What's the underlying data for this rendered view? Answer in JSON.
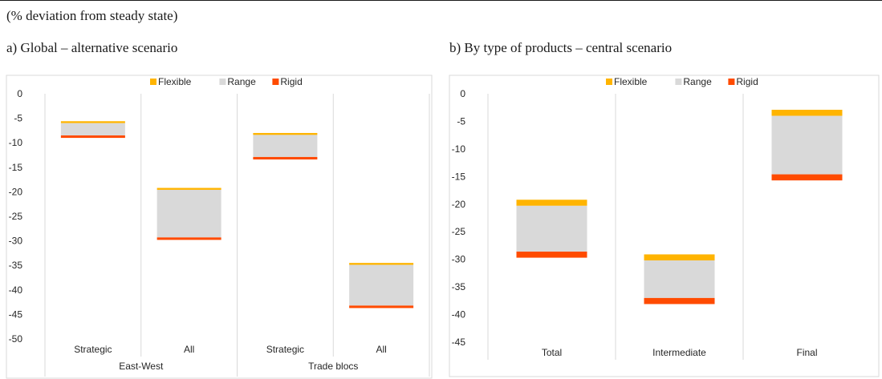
{
  "figure": {
    "subtitle": "(% deviation from steady state)"
  },
  "chart_data": [
    {
      "type": "bar",
      "panel_title": "a) Global – alternative scenario",
      "stacked": "floating",
      "legend": [
        "Flexible",
        "Range",
        "Rigid"
      ],
      "legend_position": "top",
      "colors": {
        "Flexible": "#FFB400",
        "Range": "#D9D9D9",
        "Rigid": "#FF4B00"
      },
      "categories": [
        "Strategic",
        "All",
        "Strategic",
        "All"
      ],
      "groups": [
        {
          "label": "East-West",
          "span": [
            0,
            1
          ]
        },
        {
          "label": "Trade blocs",
          "span": [
            2,
            3
          ]
        }
      ],
      "series": [
        {
          "name": "Flexible",
          "values": [
            [
              -5.6,
              -6.0
            ],
            [
              -19.2,
              -19.6
            ],
            [
              -8.0,
              -8.4
            ],
            [
              -34.5,
              -34.9
            ]
          ]
        },
        {
          "name": "Range",
          "values": [
            [
              -6.0,
              -8.5
            ],
            [
              -19.6,
              -29.3
            ],
            [
              -8.4,
              -12.9
            ],
            [
              -34.9,
              -43.2
            ]
          ]
        },
        {
          "name": "Rigid",
          "values": [
            [
              -8.5,
              -9.0
            ],
            [
              -29.3,
              -29.8
            ],
            [
              -12.9,
              -13.4
            ],
            [
              -43.2,
              -43.7
            ]
          ]
        }
      ],
      "yticks": [
        0,
        -5,
        -10,
        -15,
        -20,
        -25,
        -30,
        -35,
        -40,
        -45,
        -50
      ],
      "ylim": [
        -50,
        0
      ]
    },
    {
      "type": "bar",
      "panel_title": "b) By type of products – central scenario",
      "stacked": "floating",
      "legend": [
        "Flexible",
        "Range",
        "Rigid"
      ],
      "legend_position": "top",
      "colors": {
        "Flexible": "#FFB400",
        "Range": "#D9D9D9",
        "Rigid": "#FF4B00"
      },
      "categories": [
        "Total",
        "Intermediate",
        "Final"
      ],
      "series": [
        {
          "name": "Flexible",
          "values": [
            [
              -19.2,
              -20.3
            ],
            [
              -29.1,
              -30.2
            ],
            [
              -2.9,
              -4.0
            ]
          ]
        },
        {
          "name": "Range",
          "values": [
            [
              -20.3,
              -28.6
            ],
            [
              -30.2,
              -37.0
            ],
            [
              -4.0,
              -14.6
            ]
          ]
        },
        {
          "name": "Rigid",
          "values": [
            [
              -28.6,
              -29.7
            ],
            [
              -37.0,
              -38.1
            ],
            [
              -14.6,
              -15.7
            ]
          ]
        }
      ],
      "yticks": [
        0,
        -5,
        -10,
        -15,
        -20,
        -25,
        -30,
        -35,
        -40,
        -45
      ],
      "ylim": [
        -45,
        0
      ]
    }
  ]
}
